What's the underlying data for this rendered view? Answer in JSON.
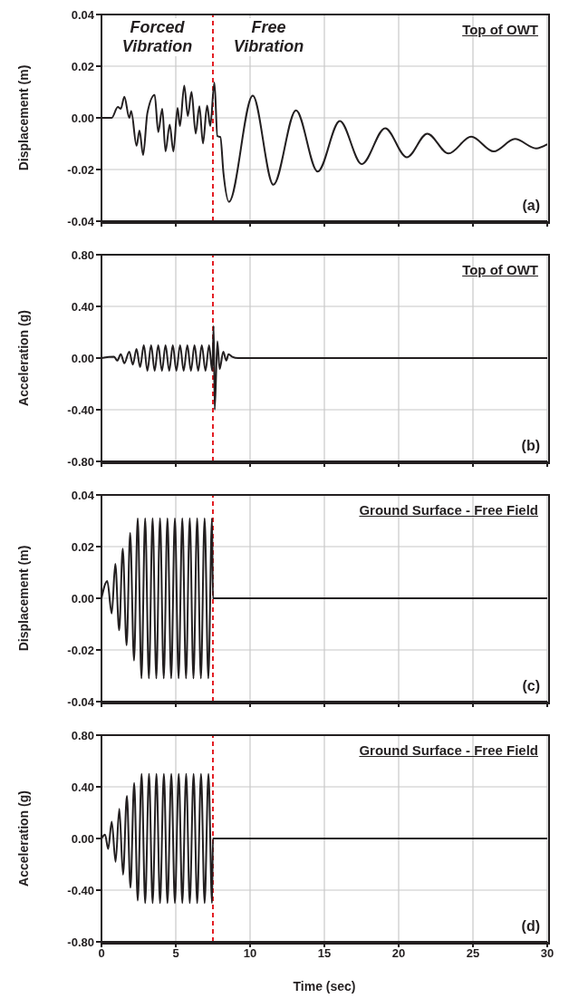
{
  "chart_data": [
    {
      "type": "line",
      "title": "Top of OWT",
      "ylabel": "Displacement (m)",
      "xlim": [
        0,
        30
      ],
      "xticks": [
        0,
        5,
        10,
        15,
        20,
        25,
        30
      ],
      "ylim": [
        -0.04,
        0.04
      ],
      "yticks": [
        -0.04,
        -0.02,
        {
          "value": 0,
          "label": "0.00"
        },
        0.02,
        0.04
      ],
      "grid": true,
      "tick_labels": "y",
      "series": [
        {
          "color": "#231f20",
          "x": [
            0,
            0.69,
            1.1,
            1.3,
            1.54,
            1.87,
            2.0,
            2.36,
            2.56,
            2.8,
            3.09,
            3.58,
            3.82,
            4.09,
            4.31,
            4.59,
            4.84,
            5.12,
            5.28,
            5.57,
            5.81,
            6.06,
            6.34,
            6.59,
            6.83,
            7.11,
            7.32,
            7.6,
            7.8,
            8.0,
            8.21,
            8.58,
            10.18,
            11.57,
            13.09,
            14.55,
            16.04,
            17.52,
            19.09,
            20.55,
            21.93,
            23.35,
            24.88,
            26.4,
            27.82,
            29.25,
            30
          ],
          "values": [
            0,
            0,
            0.0042,
            0.0035,
            0.0082,
            0,
            0.0026,
            -0.0108,
            -0.0049,
            -0.0144,
            0.0019,
            0.0089,
            -0.0055,
            0.0035,
            -0.013,
            -0.0026,
            -0.013,
            0.0039,
            -0.0032,
            0.0125,
            0.0007,
            0.0101,
            -0.0061,
            0.0045,
            -0.0099,
            0.0047,
            -0.0032,
            0.0137,
            -0.0071,
            -0.0074,
            -0.0214,
            -0.0325,
            0.0086,
            -0.0259,
            0.0029,
            -0.0208,
            -0.0012,
            -0.0179,
            -0.004,
            -0.0153,
            -0.0061,
            -0.0138,
            -0.0073,
            -0.013,
            -0.0082,
            -0.0118,
            -0.0102
          ]
        }
      ],
      "ref_lines": [
        {
          "axis": "x",
          "value": 7.5,
          "color": "#e31e24",
          "line_style": "dashed"
        }
      ],
      "annotations": [
        "Forced Vibration",
        "Free Vibration",
        "(a)"
      ]
    },
    {
      "type": "line",
      "title": "Top of OWT",
      "ylabel": "Acceleration (g)",
      "xlim": [
        0,
        30
      ],
      "xticks": [
        0,
        5,
        10,
        15,
        20,
        25,
        30
      ],
      "ylim": [
        -0.8,
        0.8
      ],
      "yticks": [
        {
          "value": -0.8,
          "label": "-0.80"
        },
        {
          "value": -0.4,
          "label": "-0.40"
        },
        {
          "value": 0,
          "label": "0.00"
        },
        {
          "value": 0.4,
          "label": "0.40"
        },
        {
          "value": 0.8,
          "label": "0.80"
        }
      ],
      "grid": true,
      "tick_labels": "y",
      "series": [
        {
          "color": "#231f20",
          "x": [
            0,
            0.85,
            1.06,
            1.3,
            1.54,
            1.87,
            2.11,
            2.36,
            2.6,
            2.85,
            3.09,
            3.34,
            3.58,
            3.82,
            4.07,
            4.31,
            4.56,
            4.8,
            5.04,
            5.29,
            5.53,
            5.78,
            6.02,
            6.26,
            6.51,
            6.75,
            7.0,
            7.24,
            7.45,
            7.55,
            7.62,
            7.8,
            7.95,
            8.2,
            8.4,
            8.55,
            8.8,
            9.2,
            30
          ],
          "values": [
            0,
            0.01,
            -0.02,
            0.03,
            -0.04,
            0.05,
            -0.05,
            0.07,
            -0.07,
            0.1,
            -0.1,
            0.1,
            -0.1,
            0.1,
            -0.1,
            0.1,
            -0.1,
            0.1,
            -0.1,
            0.1,
            -0.1,
            0.1,
            -0.1,
            0.1,
            -0.1,
            0.1,
            -0.1,
            0.1,
            -0.1,
            0.25,
            -0.4,
            0.13,
            -0.085,
            0.05,
            -0.02,
            0.03,
            0.01,
            0,
            0
          ]
        }
      ],
      "ref_lines": [
        {
          "axis": "x",
          "value": 7.5,
          "color": "#e31e24",
          "line_style": "dashed"
        }
      ],
      "annotations": [
        "(b)"
      ]
    },
    {
      "type": "line",
      "title": "Ground Surface - Free Field",
      "ylabel": "Displacement (m)",
      "xlim": [
        0,
        30
      ],
      "xticks": [
        0,
        5,
        10,
        15,
        20,
        25,
        30
      ],
      "ylim": [
        -0.04,
        0.04
      ],
      "yticks": [
        -0.04,
        -0.02,
        {
          "value": 0,
          "label": "0.00"
        },
        0.02,
        0.04
      ],
      "grid": true,
      "tick_labels": "y",
      "series": [
        {
          "color": "#231f20",
          "x": [
            0,
            0.39,
            0.69,
            0.93,
            1.19,
            1.43,
            1.69,
            1.93,
            2.19,
            2.44,
            2.69,
            2.94,
            3.19,
            3.44,
            3.69,
            3.94,
            4.19,
            4.44,
            4.69,
            4.94,
            5.19,
            5.44,
            5.69,
            5.94,
            6.19,
            6.44,
            6.69,
            6.94,
            7.19,
            7.44,
            7.5,
            30
          ],
          "values": [
            0,
            0.0067,
            -0.0059,
            0.0133,
            -0.0124,
            0.0192,
            -0.0182,
            0.0253,
            -0.0241,
            0.031,
            -0.031,
            0.031,
            -0.031,
            0.031,
            -0.031,
            0.031,
            -0.031,
            0.031,
            -0.031,
            0.031,
            -0.031,
            0.031,
            -0.031,
            0.031,
            -0.031,
            0.031,
            -0.031,
            0.031,
            -0.031,
            0.031,
            0,
            0
          ]
        }
      ],
      "ref_lines": [
        {
          "axis": "x",
          "value": 7.5,
          "color": "#e31e24",
          "line_style": "dashed"
        }
      ],
      "annotations": [
        "(c)"
      ]
    },
    {
      "type": "line",
      "title": "Ground Surface - Free Field",
      "xlabel": "Time (sec)",
      "ylabel": "Acceleration (g)",
      "xlim": [
        0,
        30
      ],
      "xticks": [
        0,
        5,
        10,
        15,
        20,
        25,
        30
      ],
      "ylim": [
        -0.8,
        0.8
      ],
      "yticks": [
        {
          "value": -0.8,
          "label": "-0.80"
        },
        {
          "value": -0.4,
          "label": "-0.40"
        },
        {
          "value": 0,
          "label": "0.00"
        },
        {
          "value": 0.4,
          "label": "0.40"
        },
        {
          "value": 0.8,
          "label": "0.80"
        }
      ],
      "grid": true,
      "series": [
        {
          "color": "#231f20",
          "x": [
            0,
            0.24,
            0.45,
            0.69,
            0.95,
            1.2,
            1.45,
            1.71,
            1.95,
            2.2,
            2.44,
            2.7,
            2.94,
            3.2,
            3.44,
            3.7,
            3.94,
            4.2,
            4.44,
            4.7,
            4.94,
            5.2,
            5.44,
            5.7,
            5.94,
            6.2,
            6.44,
            6.7,
            6.94,
            7.2,
            7.44,
            7.5,
            30
          ],
          "values": [
            0,
            0.03,
            -0.08,
            0.13,
            -0.18,
            0.23,
            -0.28,
            0.33,
            -0.38,
            0.43,
            -0.48,
            0.5,
            -0.5,
            0.5,
            -0.5,
            0.5,
            -0.5,
            0.5,
            -0.5,
            0.5,
            -0.5,
            0.5,
            -0.5,
            0.5,
            -0.5,
            0.5,
            -0.5,
            0.5,
            -0.5,
            0.5,
            -0.5,
            0,
            0
          ]
        }
      ],
      "ref_lines": [
        {
          "axis": "x",
          "value": 7.5,
          "color": "#e31e24",
          "line_style": "dashed"
        }
      ],
      "annotations": [
        "(d)"
      ]
    }
  ]
}
